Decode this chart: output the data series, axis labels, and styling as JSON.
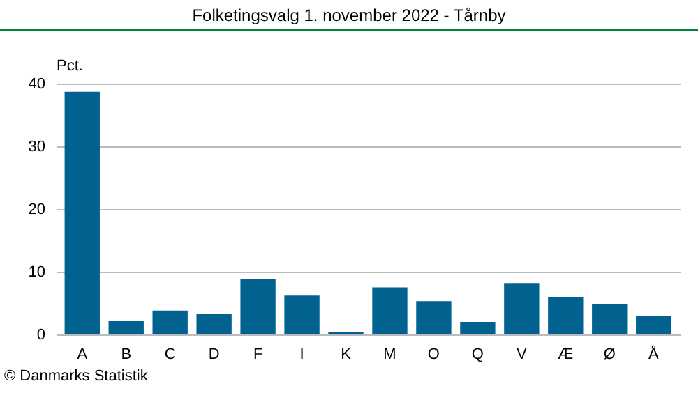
{
  "chart_data": {
    "type": "bar",
    "title": "Folketingsvalg 1. november 2022 - Tårnby",
    "ylabel": "Pct.",
    "categories": [
      "A",
      "B",
      "C",
      "D",
      "F",
      "I",
      "K",
      "M",
      "O",
      "Q",
      "V",
      "Æ",
      "Ø",
      "Å"
    ],
    "values": [
      38.7,
      2.2,
      3.8,
      3.3,
      8.9,
      6.2,
      0.4,
      7.5,
      5.3,
      2.0,
      8.2,
      6.0,
      4.9,
      2.9
    ],
    "color": "#02628f",
    "ylim": [
      0,
      40
    ],
    "yticks": [
      0,
      10,
      20,
      30,
      40
    ],
    "grid": "y",
    "annotations": [
      "© Danmarks Statistik"
    ]
  }
}
